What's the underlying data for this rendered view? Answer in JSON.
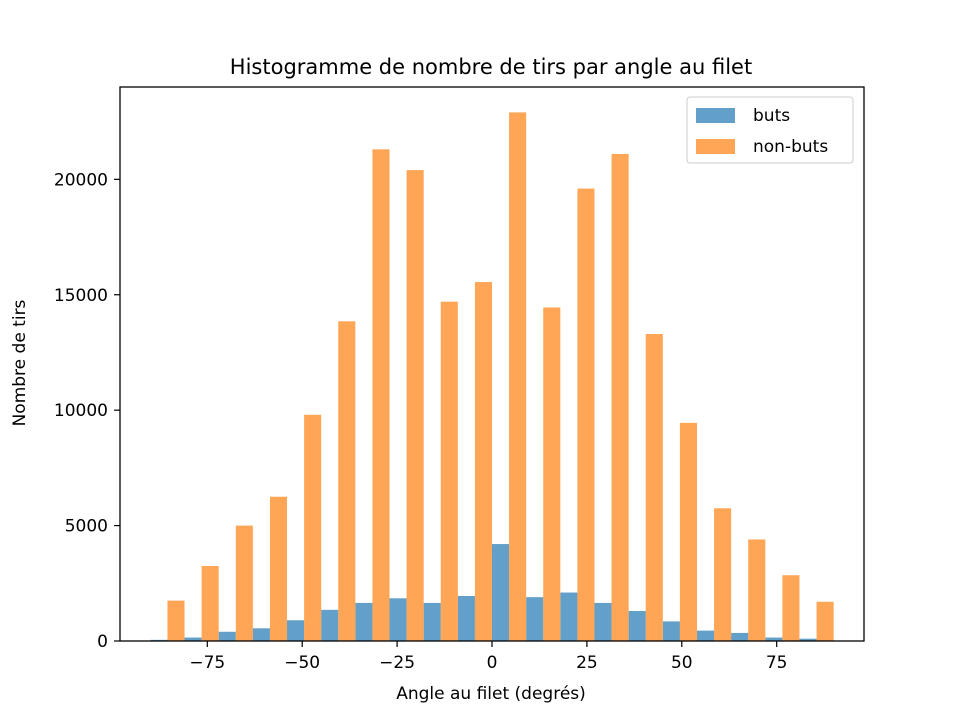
{
  "chart_data": {
    "type": "bar",
    "title": "Histogramme de nombre de tirs par angle au filet",
    "xlabel": "Angle au filet (degrés)",
    "ylabel": "Nombre de tirs",
    "xlim": [
      -98,
      98
    ],
    "ylim": [
      0,
      24000
    ],
    "bin_edges": [
      -90,
      -81,
      -72,
      -63,
      -54,
      -45,
      -36,
      -27,
      -18,
      -9,
      0,
      9,
      18,
      27,
      36,
      45,
      54,
      63,
      72,
      81,
      90
    ],
    "x_ticks": [
      -75,
      -50,
      -25,
      0,
      25,
      50,
      75
    ],
    "x_tick_labels": [
      "−75",
      "−50",
      "−25",
      "0",
      "25",
      "50",
      "75"
    ],
    "y_ticks": [
      0,
      5000,
      10000,
      15000,
      20000
    ],
    "y_tick_labels": [
      "0",
      "5000",
      "10000",
      "15000",
      "20000"
    ],
    "series": [
      {
        "name": "buts",
        "color": "#1f77b4",
        "values": [
          50,
          150,
          400,
          550,
          900,
          1350,
          1650,
          1850,
          1650,
          1950,
          4200,
          1900,
          2100,
          1650,
          1300,
          850,
          450,
          350,
          150,
          100
        ]
      },
      {
        "name": "non-buts",
        "color": "#ff7f0e",
        "values": [
          1750,
          3250,
          5000,
          6250,
          9800,
          13850,
          21300,
          20400,
          14700,
          15550,
          22900,
          14450,
          19600,
          21100,
          13300,
          9450,
          5750,
          4400,
          2850,
          1700
        ]
      }
    ],
    "legend_position": "top-right",
    "grid": false
  }
}
